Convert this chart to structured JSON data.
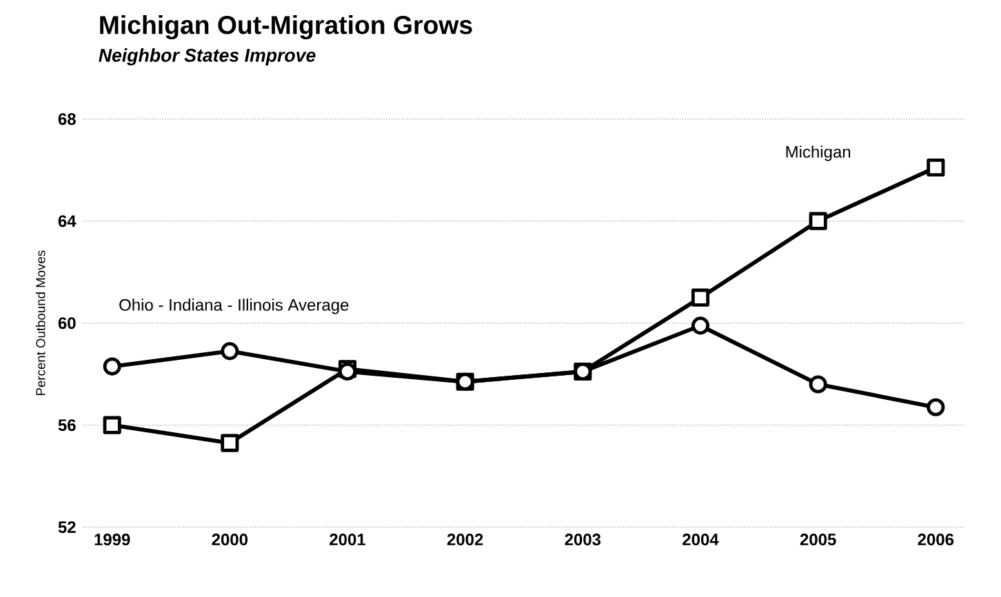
{
  "chart_data": {
    "type": "line",
    "title": "Michigan Out-Migration Grows",
    "subtitle": "Neighbor States Improve",
    "ylabel": "Percent Outbound Moves",
    "categories": [
      "1999",
      "2000",
      "2001",
      "2002",
      "2003",
      "2004",
      "2005",
      "2006"
    ],
    "series": [
      {
        "name": "Michigan",
        "color": "#000000",
        "marker": "square",
        "values": [
          56,
          55.3,
          58.2,
          57.7,
          58.1,
          61,
          64,
          66.1
        ]
      },
      {
        "name": "Ohio - Indiana - Illinois Average",
        "color": "#000000",
        "marker": "circle",
        "values": [
          58.3,
          58.9,
          58.1,
          57.7,
          58.1,
          59.9,
          57.6,
          56.7
        ]
      }
    ],
    "ylim": [
      52,
      68
    ],
    "yticks": [
      52,
      56,
      60,
      64,
      68
    ],
    "grid": "y",
    "line_style": "solid"
  }
}
